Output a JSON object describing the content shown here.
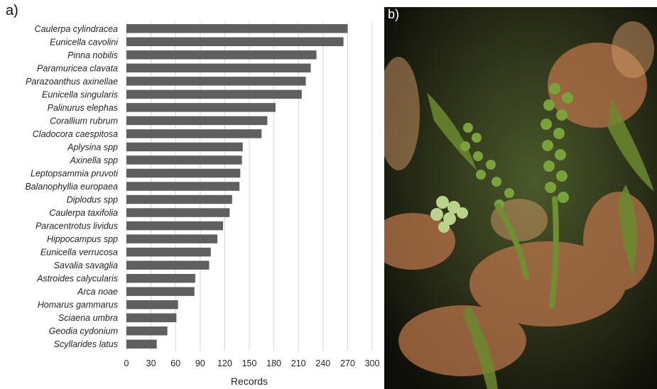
{
  "panel_a_label": "a)",
  "panel_b_label": "b)",
  "chart_data": {
    "type": "bar",
    "orientation": "horizontal",
    "categories": [
      "Caulerpa cylindracea",
      "Eunicella cavolini",
      "Pinna nobilis",
      "Paramuricea clavata",
      "Parazoanthus axinellae",
      "Eunicella singularis",
      "Palinurus elephas",
      "Corallium rubrum",
      "Cladocora caespitosa",
      "Aplysina spp",
      "Axinella spp",
      "Leptopsammia pruvoti",
      "Balanophyllia europaea",
      "Diplodus spp",
      "Caulerpa taxifolia",
      "Paracentrotus lividus",
      "Hippocampus spp",
      "Eunicella verrucosa",
      "Savalia savaglia",
      "Astroides calycularis",
      "Arca noae",
      "Homarus gammarus",
      "Sciaena umbra",
      "Geodia cydonium",
      "Scyllarides latus"
    ],
    "values": [
      270,
      265,
      232,
      225,
      219,
      214,
      182,
      172,
      165,
      142,
      141,
      139,
      138,
      129,
      126,
      118,
      111,
      103,
      101,
      84,
      83,
      63,
      61,
      50,
      37
    ],
    "xlabel": "Records",
    "ylabel": "",
    "xlim": [
      0,
      300
    ],
    "xticks": [
      "0",
      "30",
      "60",
      "90",
      "120",
      "150",
      "180",
      "210",
      "240",
      "270",
      "300"
    ],
    "grid": true,
    "bar_color": "#5f5f5f",
    "grid_color": "#d4d4d4"
  },
  "photo": {
    "subject_icon": "underwater-algae-photo",
    "colors": {
      "dark": "#1a1a12",
      "algae": "#5a7a2a",
      "algae_light": "#9dbf5a",
      "red_algae": "#c07a50"
    }
  }
}
